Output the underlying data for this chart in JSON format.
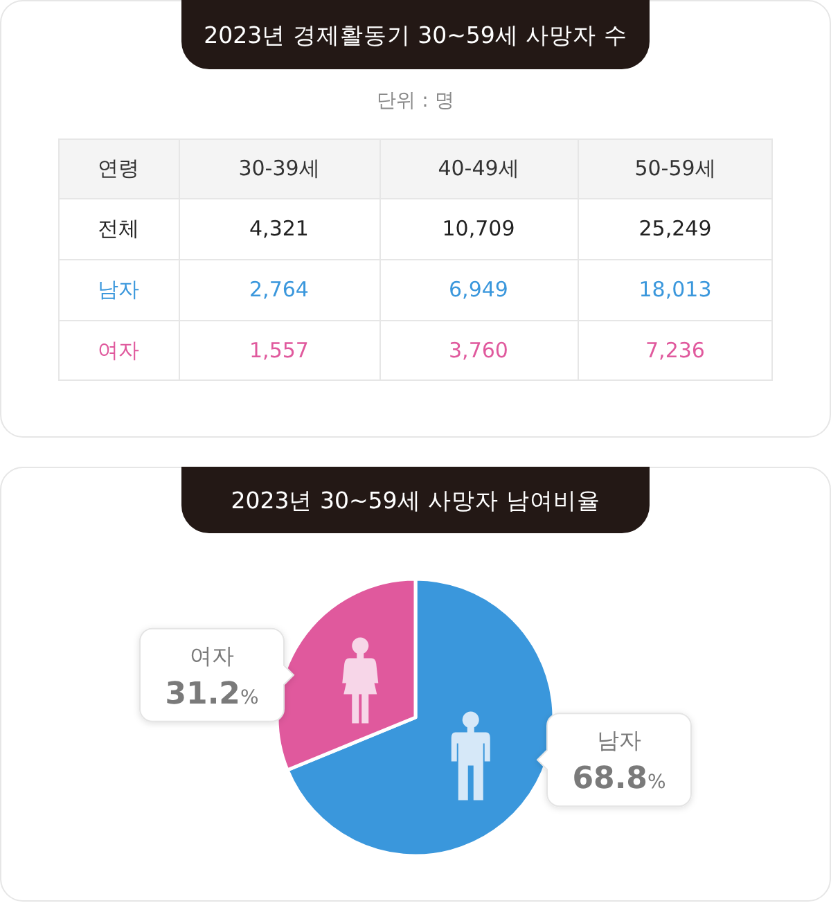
{
  "chart_data": [
    {
      "type": "heatmap",
      "title": "2023년 경제활동기 30~59세 사망자 수",
      "subtitle": "단위 : 명",
      "xlabel": "연령",
      "categories": [
        "30-39세",
        "40-49세",
        "50-59세"
      ],
      "y_categories": [
        "전체",
        "남자",
        "여자"
      ],
      "cells": [
        [
          4321,
          10709,
          25249
        ],
        [
          2764,
          6949,
          18013
        ],
        [
          1557,
          3760,
          7236
        ]
      ],
      "cell_labels": [
        [
          "4,321",
          "10,709",
          "25,249"
        ],
        [
          "2,764",
          "6,949",
          "18,013"
        ],
        [
          "1,557",
          "3,760",
          "7,236"
        ]
      ]
    },
    {
      "type": "pie",
      "title": "2023년 30~59세 사망자 남여비율",
      "categories": [
        "남자",
        "여자"
      ],
      "values": [
        68.8,
        31.2
      ],
      "colors": [
        "#3a97dc",
        "#e0599d"
      ],
      "value_labels": [
        "68.8%",
        "31.2%"
      ]
    }
  ]
}
